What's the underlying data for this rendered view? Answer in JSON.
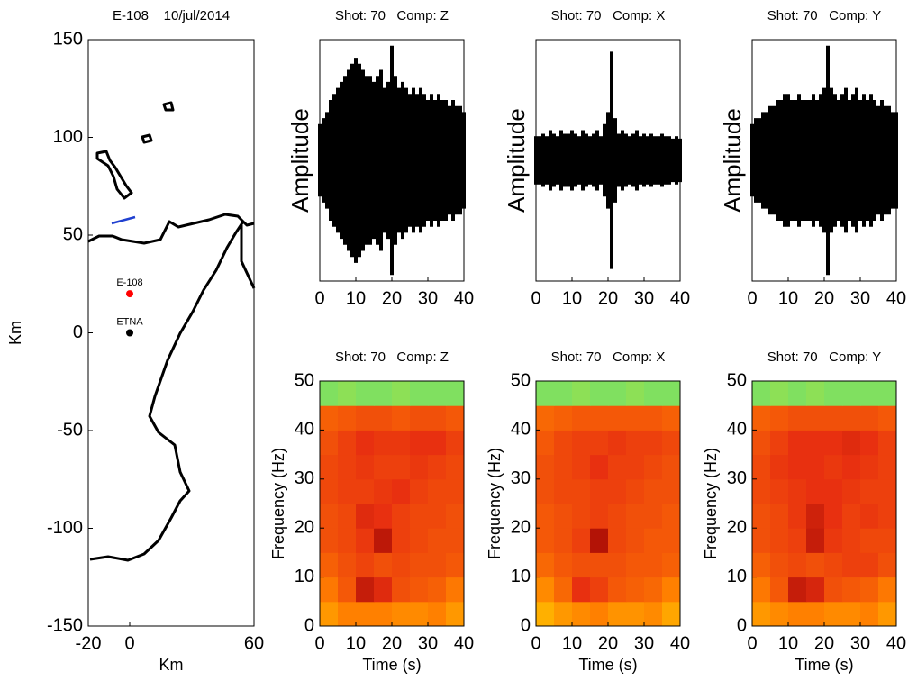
{
  "chart_data": [
    {
      "type": "scatter",
      "title": "E-108    10/jul/2014",
      "x_label": "Km",
      "y_label": "Km",
      "xlim": [
        -20,
        60
      ],
      "ylim": [
        -150,
        150
      ],
      "xticks": [
        -20,
        0,
        60
      ],
      "yticks": [
        -150,
        -100,
        -50,
        0,
        50,
        100,
        150
      ],
      "points": [
        {
          "name": "E-108",
          "x": 0,
          "y": 20,
          "color": "#ff0000"
        },
        {
          "name": "ETNA",
          "x": 0,
          "y": 0,
          "color": "#000000"
        }
      ]
    },
    {
      "type": "waveform",
      "title": "Shot: 70   Comp: Z",
      "y_label": "Amplitude",
      "xlim": [
        0,
        40
      ],
      "xticks": [
        0,
        10,
        20,
        30,
        40
      ],
      "ylim": [
        -1,
        1
      ],
      "color": "#000000",
      "x": [
        0,
        1,
        2,
        3,
        4,
        5,
        6,
        7,
        8,
        9,
        10,
        11,
        12,
        13,
        14,
        15,
        16,
        17,
        18,
        19,
        20,
        21,
        22,
        23,
        24,
        25,
        26,
        27,
        28,
        29,
        30,
        31,
        32,
        33,
        34,
        35,
        36,
        37,
        38,
        39,
        40
      ],
      "values": [
        0.3,
        0.35,
        0.4,
        0.5,
        0.55,
        0.6,
        0.65,
        0.7,
        0.75,
        0.8,
        0.85,
        0.8,
        0.75,
        0.7,
        0.7,
        0.65,
        0.7,
        0.75,
        0.6,
        0.65,
        0.95,
        0.7,
        0.6,
        0.65,
        0.6,
        0.55,
        0.6,
        0.55,
        0.6,
        0.55,
        0.5,
        0.55,
        0.5,
        0.55,
        0.5,
        0.5,
        0.45,
        0.5,
        0.45,
        0.45,
        0.4
      ]
    },
    {
      "type": "waveform",
      "title": "Shot: 70   Comp: X",
      "y_label": "Amplitude",
      "xlim": [
        0,
        40
      ],
      "xticks": [
        0,
        10,
        20,
        30,
        40
      ],
      "ylim": [
        -1,
        1
      ],
      "color": "#000000",
      "x": [
        0,
        1,
        2,
        3,
        4,
        5,
        6,
        7,
        8,
        9,
        10,
        11,
        12,
        13,
        14,
        15,
        16,
        17,
        18,
        19,
        20,
        21,
        22,
        23,
        24,
        25,
        26,
        27,
        28,
        29,
        30,
        31,
        32,
        33,
        34,
        35,
        36,
        37,
        38,
        39,
        40
      ],
      "values": [
        0.2,
        0.2,
        0.22,
        0.2,
        0.25,
        0.22,
        0.2,
        0.25,
        0.22,
        0.22,
        0.25,
        0.22,
        0.2,
        0.25,
        0.22,
        0.2,
        0.22,
        0.25,
        0.2,
        0.3,
        0.4,
        0.9,
        0.35,
        0.22,
        0.25,
        0.22,
        0.2,
        0.22,
        0.25,
        0.2,
        0.22,
        0.2,
        0.22,
        0.2,
        0.2,
        0.22,
        0.2,
        0.2,
        0.18,
        0.2,
        0.18
      ]
    },
    {
      "type": "waveform",
      "title": "Shot: 70   Comp: Y",
      "y_label": "Amplitude",
      "xlim": [
        0,
        40
      ],
      "xticks": [
        0,
        10,
        20,
        30,
        40
      ],
      "ylim": [
        -1,
        1
      ],
      "color": "#000000",
      "x": [
        0,
        1,
        2,
        3,
        4,
        5,
        6,
        7,
        8,
        9,
        10,
        11,
        12,
        13,
        14,
        15,
        16,
        17,
        18,
        19,
        20,
        21,
        22,
        23,
        24,
        25,
        26,
        27,
        28,
        29,
        30,
        31,
        32,
        33,
        34,
        35,
        36,
        37,
        38,
        39,
        40
      ],
      "values": [
        0.3,
        0.35,
        0.35,
        0.4,
        0.4,
        0.45,
        0.45,
        0.5,
        0.5,
        0.55,
        0.55,
        0.5,
        0.5,
        0.55,
        0.5,
        0.5,
        0.5,
        0.55,
        0.5,
        0.55,
        0.6,
        0.95,
        0.6,
        0.55,
        0.5,
        0.55,
        0.6,
        0.5,
        0.55,
        0.6,
        0.5,
        0.55,
        0.5,
        0.55,
        0.5,
        0.45,
        0.5,
        0.45,
        0.45,
        0.4,
        0.4
      ]
    },
    {
      "type": "heatmap",
      "title": "Shot: 70   Comp: Z",
      "x_label": "Time (s)",
      "y_label": "Frequency (Hz)",
      "xlim": [
        0,
        40
      ],
      "ylim": [
        0,
        50
      ],
      "xticks": [
        0,
        10,
        20,
        30,
        40
      ],
      "yticks": [
        0,
        10,
        20,
        30,
        40,
        50
      ],
      "zlim": [
        0,
        1
      ],
      "colormap": [
        "#20d0d0",
        "#80e060",
        "#ffe000",
        "#ff8000",
        "#e83010",
        "#900000"
      ],
      "values": [
        [
          0.55,
          0.6,
          0.6,
          0.6,
          0.58,
          0.58,
          0.6,
          0.55
        ],
        [
          0.62,
          0.7,
          0.88,
          0.82,
          0.72,
          0.7,
          0.68,
          0.62
        ],
        [
          0.68,
          0.72,
          0.75,
          0.72,
          0.74,
          0.72,
          0.72,
          0.7
        ],
        [
          0.72,
          0.74,
          0.78,
          0.9,
          0.76,
          0.74,
          0.72,
          0.72
        ],
        [
          0.72,
          0.74,
          0.82,
          0.8,
          0.76,
          0.74,
          0.74,
          0.72
        ],
        [
          0.74,
          0.76,
          0.76,
          0.78,
          0.8,
          0.76,
          0.74,
          0.74
        ],
        [
          0.74,
          0.76,
          0.78,
          0.76,
          0.76,
          0.78,
          0.76,
          0.74
        ],
        [
          0.72,
          0.76,
          0.8,
          0.78,
          0.78,
          0.8,
          0.8,
          0.76
        ],
        [
          0.68,
          0.7,
          0.72,
          0.72,
          0.7,
          0.72,
          0.72,
          0.7
        ],
        [
          0.2,
          0.22,
          0.2,
          0.2,
          0.22,
          0.2,
          0.2,
          0.2
        ]
      ]
    },
    {
      "type": "heatmap",
      "title": "Shot: 70   Comp: X",
      "x_label": "Time (s)",
      "y_label": "Frequency (Hz)",
      "xlim": [
        0,
        40
      ],
      "ylim": [
        0,
        50
      ],
      "xticks": [
        0,
        10,
        20,
        30,
        40
      ],
      "yticks": [
        0,
        10,
        20,
        30,
        40,
        50
      ],
      "zlim": [
        0,
        1
      ],
      "colormap": [
        "#20d0d0",
        "#80e060",
        "#ffe000",
        "#ff8000",
        "#e83010",
        "#900000"
      ],
      "values": [
        [
          0.5,
          0.55,
          0.58,
          0.6,
          0.56,
          0.56,
          0.58,
          0.52
        ],
        [
          0.58,
          0.66,
          0.8,
          0.76,
          0.7,
          0.68,
          0.66,
          0.6
        ],
        [
          0.66,
          0.7,
          0.72,
          0.72,
          0.72,
          0.7,
          0.7,
          0.68
        ],
        [
          0.7,
          0.72,
          0.76,
          0.92,
          0.74,
          0.72,
          0.7,
          0.7
        ],
        [
          0.7,
          0.72,
          0.74,
          0.76,
          0.74,
          0.72,
          0.72,
          0.7
        ],
        [
          0.72,
          0.74,
          0.74,
          0.76,
          0.76,
          0.74,
          0.72,
          0.72
        ],
        [
          0.72,
          0.74,
          0.76,
          0.8,
          0.76,
          0.76,
          0.74,
          0.72
        ],
        [
          0.7,
          0.74,
          0.76,
          0.76,
          0.78,
          0.76,
          0.76,
          0.74
        ],
        [
          0.66,
          0.68,
          0.7,
          0.7,
          0.7,
          0.7,
          0.7,
          0.68
        ],
        [
          0.2,
          0.2,
          0.22,
          0.2,
          0.2,
          0.22,
          0.2,
          0.2
        ]
      ]
    },
    {
      "type": "heatmap",
      "title": "Shot: 70   Comp: Y",
      "x_label": "Time (s)",
      "y_label": "Frequency (Hz)",
      "xlim": [
        0,
        40
      ],
      "ylim": [
        0,
        50
      ],
      "xticks": [
        0,
        10,
        20,
        30,
        40
      ],
      "yticks": [
        0,
        10,
        20,
        30,
        40,
        50
      ],
      "zlim": [
        0,
        1
      ],
      "colormap": [
        "#20d0d0",
        "#80e060",
        "#ffe000",
        "#ff8000",
        "#e83010",
        "#900000"
      ],
      "values": [
        [
          0.55,
          0.58,
          0.6,
          0.6,
          0.58,
          0.58,
          0.6,
          0.55
        ],
        [
          0.62,
          0.7,
          0.88,
          0.84,
          0.72,
          0.7,
          0.68,
          0.62
        ],
        [
          0.68,
          0.72,
          0.74,
          0.72,
          0.74,
          0.76,
          0.76,
          0.72
        ],
        [
          0.72,
          0.74,
          0.76,
          0.88,
          0.78,
          0.76,
          0.74,
          0.74
        ],
        [
          0.72,
          0.74,
          0.78,
          0.86,
          0.8,
          0.76,
          0.78,
          0.76
        ],
        [
          0.74,
          0.76,
          0.78,
          0.8,
          0.8,
          0.78,
          0.76,
          0.76
        ],
        [
          0.74,
          0.78,
          0.8,
          0.8,
          0.78,
          0.8,
          0.78,
          0.76
        ],
        [
          0.72,
          0.76,
          0.8,
          0.8,
          0.8,
          0.82,
          0.8,
          0.76
        ],
        [
          0.68,
          0.7,
          0.72,
          0.72,
          0.72,
          0.72,
          0.72,
          0.7
        ],
        [
          0.2,
          0.22,
          0.2,
          0.22,
          0.2,
          0.2,
          0.2,
          0.2
        ]
      ]
    }
  ]
}
